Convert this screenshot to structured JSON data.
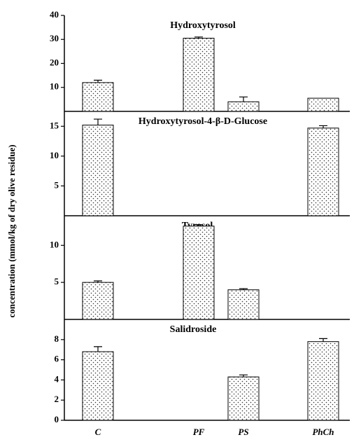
{
  "y_label": "concentration (mmol/kg of dry olive residue)",
  "categories": [
    "C",
    "PF",
    "PS",
    "PhCh"
  ],
  "chart_data": [
    {
      "type": "bar",
      "title": "Hydroxytyrosol",
      "values": [
        12,
        30.5,
        4,
        5.5
      ],
      "errors": [
        1,
        0.5,
        2,
        0
      ],
      "ylim": [
        0,
        40
      ],
      "yticks": [
        10,
        20,
        30,
        40
      ]
    },
    {
      "type": "bar",
      "title": "Hydroxytyrosol-4-β-D-Glucose",
      "values": [
        15.2,
        null,
        null,
        14.7
      ],
      "errors": [
        1,
        null,
        null,
        0.4
      ],
      "ylim": [
        0,
        17.5
      ],
      "yticks": [
        5,
        10,
        15
      ]
    },
    {
      "type": "bar",
      "title": "Tyrosol",
      "values": [
        5,
        12.6,
        4,
        null
      ],
      "errors": [
        0.2,
        0.2,
        0.15,
        null
      ],
      "ylim": [
        0,
        14
      ],
      "yticks": [
        5,
        10
      ]
    },
    {
      "type": "bar",
      "title": "Salidroside",
      "values": [
        6.8,
        null,
        4.3,
        7.8
      ],
      "errors": [
        0.5,
        null,
        0.2,
        0.3
      ],
      "ylim": [
        0,
        10
      ],
      "yticks": [
        0,
        2,
        4,
        6,
        8
      ]
    }
  ]
}
